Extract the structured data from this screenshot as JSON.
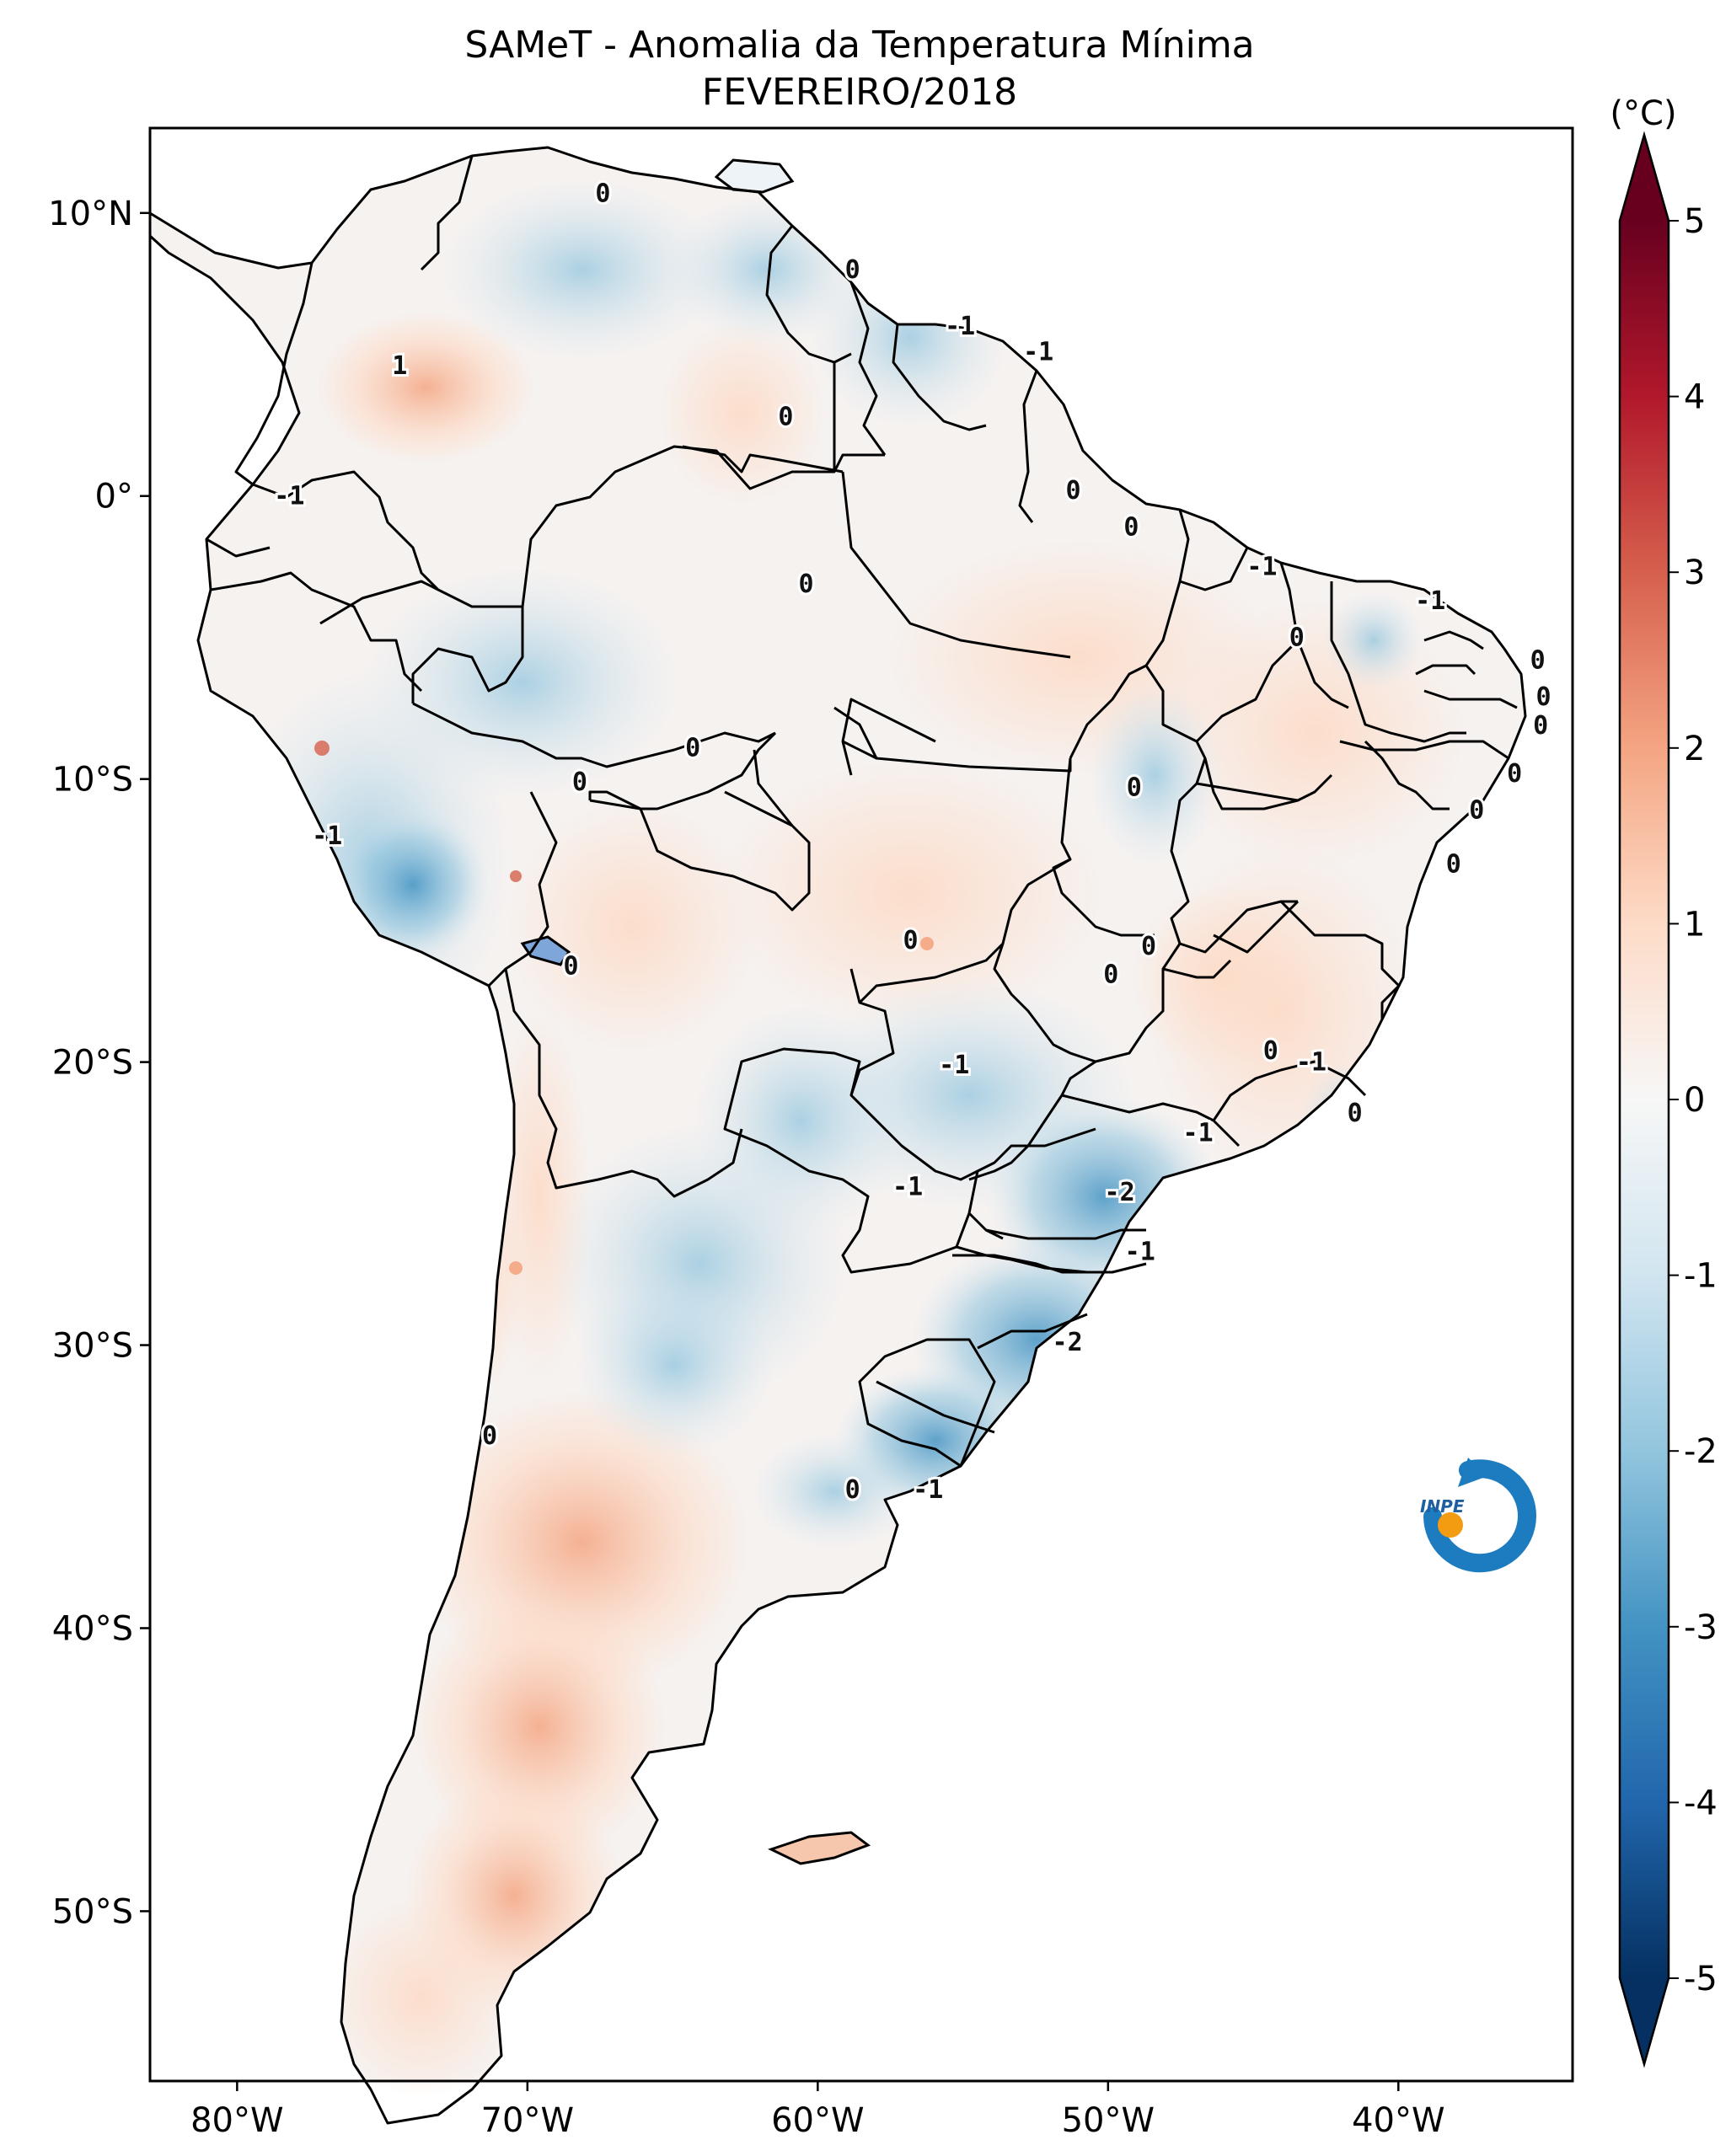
{
  "title": {
    "line1": "SAMeT - Anomalia da Temperatura Mínima",
    "line2": "FEVEREIRO/2018"
  },
  "map": {
    "lon_range": [
      -83,
      -34
    ],
    "lat_range": [
      -56,
      13
    ],
    "x_ticks": [
      {
        "lon": -80,
        "label": "80°W"
      },
      {
        "lon": -70,
        "label": "70°W"
      },
      {
        "lon": -60,
        "label": "60°W"
      },
      {
        "lon": -50,
        "label": "50°W"
      },
      {
        "lon": -40,
        "label": "40°W"
      }
    ],
    "y_ticks": [
      {
        "lat": 10,
        "label": "10°N"
      },
      {
        "lat": 0,
        "label": "0°"
      },
      {
        "lat": -10,
        "label": "10°S"
      },
      {
        "lat": -20,
        "label": "20°S"
      },
      {
        "lat": -30,
        "label": "30°S"
      },
      {
        "lat": -40,
        "label": "40°S"
      },
      {
        "lat": -50,
        "label": "50°S"
      }
    ],
    "contour_labels": [
      {
        "text": "0",
        "lon": -67.4,
        "lat": 10.7
      },
      {
        "text": "1",
        "lon": -74.4,
        "lat": 4.6
      },
      {
        "text": "0",
        "lon": -58.8,
        "lat": 8.0
      },
      {
        "text": "-1",
        "lon": -55.1,
        "lat": 6.0
      },
      {
        "text": "-1",
        "lon": -52.4,
        "lat": 5.1
      },
      {
        "text": "0",
        "lon": -61.1,
        "lat": 2.8
      },
      {
        "text": "0",
        "lon": -51.2,
        "lat": 0.2
      },
      {
        "text": "0",
        "lon": -49.2,
        "lat": -1.1
      },
      {
        "text": "-1",
        "lon": -78.2,
        "lat": 0.0
      },
      {
        "text": "0",
        "lon": -60.4,
        "lat": -3.1
      },
      {
        "text": "-1",
        "lon": -44.7,
        "lat": -2.5
      },
      {
        "text": "-1",
        "lon": -38.9,
        "lat": -3.7
      },
      {
        "text": "0",
        "lon": -43.5,
        "lat": -5.0
      },
      {
        "text": "0",
        "lon": -35.2,
        "lat": -5.8
      },
      {
        "text": "0",
        "lon": -35.0,
        "lat": -7.1
      },
      {
        "text": "0",
        "lon": -35.1,
        "lat": -8.1
      },
      {
        "text": "0",
        "lon": -36.0,
        "lat": -9.8
      },
      {
        "text": "0",
        "lon": -64.3,
        "lat": -8.9
      },
      {
        "text": "0",
        "lon": -68.2,
        "lat": -10.1
      },
      {
        "text": "0",
        "lon": -49.1,
        "lat": -10.3
      },
      {
        "text": "0",
        "lon": -37.3,
        "lat": -11.1
      },
      {
        "text": "-1",
        "lon": -76.9,
        "lat": -12.0
      },
      {
        "text": "0",
        "lon": -38.1,
        "lat": -13.0
      },
      {
        "text": "0",
        "lon": -56.8,
        "lat": -15.7
      },
      {
        "text": "0",
        "lon": -48.6,
        "lat": -15.9
      },
      {
        "text": "0",
        "lon": -49.9,
        "lat": -16.9
      },
      {
        "text": "0",
        "lon": -68.5,
        "lat": -16.6
      },
      {
        "text": "-1",
        "lon": -55.3,
        "lat": -20.1
      },
      {
        "text": "0",
        "lon": -44.4,
        "lat": -19.6
      },
      {
        "text": "-1",
        "lon": -43.0,
        "lat": -20.0
      },
      {
        "text": "0",
        "lon": -41.5,
        "lat": -21.8
      },
      {
        "text": "-1",
        "lon": -46.9,
        "lat": -22.5
      },
      {
        "text": "-1",
        "lon": -56.9,
        "lat": -24.4
      },
      {
        "text": "-2",
        "lon": -49.6,
        "lat": -24.6
      },
      {
        "text": "-1",
        "lon": -48.9,
        "lat": -26.7
      },
      {
        "text": "-2",
        "lon": -51.4,
        "lat": -29.9
      },
      {
        "text": "0",
        "lon": -71.3,
        "lat": -33.2
      },
      {
        "text": "0",
        "lon": -58.8,
        "lat": -35.1
      },
      {
        "text": "-1",
        "lon": -56.2,
        "lat": -35.1
      }
    ]
  },
  "colorbar": {
    "unit": "(°C)",
    "min": -5,
    "max": 5,
    "ticks": [
      "5",
      "4",
      "3",
      "2",
      "1",
      "0",
      "-1",
      "-2",
      "-3",
      "-4",
      "-5"
    ],
    "colors": [
      "#053061",
      "#2166ac",
      "#4393c3",
      "#92c5de",
      "#d1e5f0",
      "#f7f7f7",
      "#fddbc7",
      "#f4a582",
      "#d6604d",
      "#b2182b",
      "#67001f"
    ]
  },
  "logo": {
    "text": "INPE",
    "colors": {
      "arc": "#1d7bbf",
      "dot": "#f39c12"
    }
  }
}
